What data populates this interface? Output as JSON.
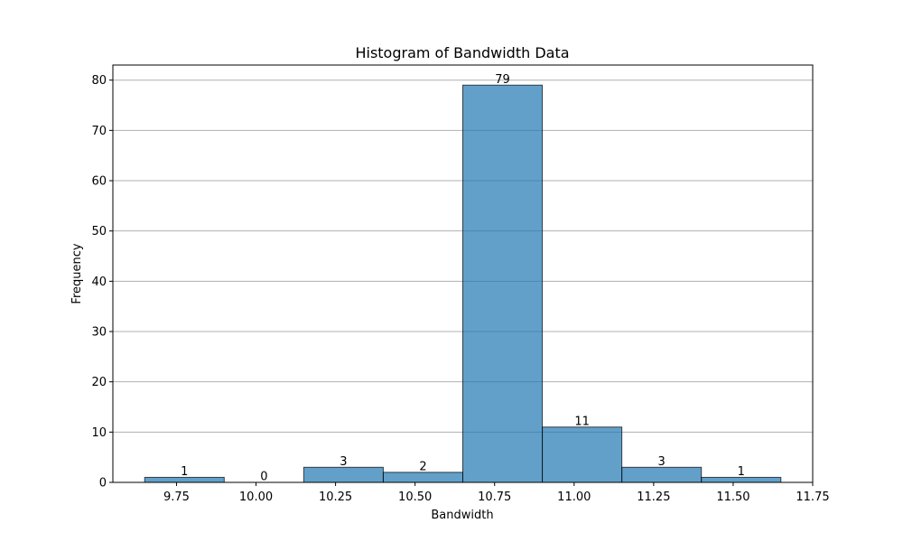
{
  "chart_data": {
    "type": "bar",
    "title": "Histogram of Bandwidth Data",
    "xlabel": "Bandwidth",
    "ylabel": "Frequency",
    "bin_edges": [
      9.65,
      9.9,
      10.15,
      10.4,
      10.65,
      10.9,
      11.15,
      11.4,
      11.65
    ],
    "values": [
      1,
      0,
      3,
      2,
      79,
      11,
      3,
      1
    ],
    "xlim": [
      9.55,
      11.75
    ],
    "ylim": [
      0,
      83
    ],
    "xticks": [
      "9.75",
      "10.00",
      "10.25",
      "10.50",
      "10.75",
      "11.00",
      "11.25",
      "11.50",
      "11.75"
    ],
    "yticks": [
      "0",
      "10",
      "20",
      "30",
      "40",
      "50",
      "60",
      "70",
      "80"
    ],
    "grid": "y",
    "legend": "none",
    "bar_color": "#1f77b4"
  }
}
